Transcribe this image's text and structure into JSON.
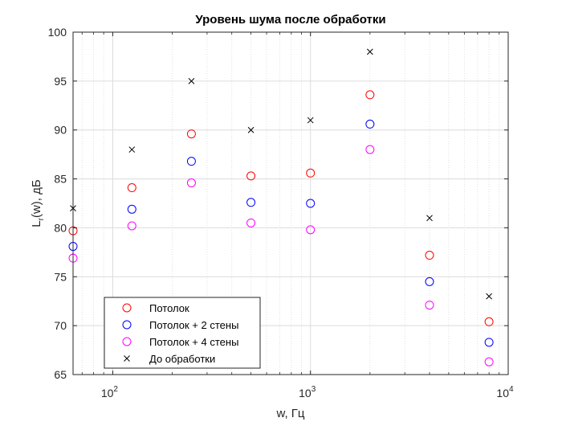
{
  "chart_data": {
    "type": "scatter",
    "title": "Уровень шума после обработки",
    "xlabel": "w, Гц",
    "ylabel": {
      "base": "L",
      "sub": "r",
      "rest": "(w), дБ"
    },
    "xscale": "log",
    "xlim": [
      63,
      10000
    ],
    "ylim": [
      65,
      100
    ],
    "grid": true,
    "legend_position": "bottom-left",
    "xticks": [
      {
        "value": 100,
        "base": "10",
        "exp": "2"
      },
      {
        "value": 1000,
        "base": "10",
        "exp": "3"
      },
      {
        "value": 10000,
        "base": "10",
        "exp": "4"
      }
    ],
    "yticks": [
      65,
      70,
      75,
      80,
      85,
      90,
      95,
      100
    ],
    "x": [
      63,
      125,
      250,
      500,
      1000,
      2000,
      4000,
      8000
    ],
    "series": [
      {
        "name": "Потолок",
        "marker": "circle",
        "color": "#ff0000",
        "values": [
          79.7,
          84.1,
          89.6,
          85.3,
          85.6,
          93.6,
          77.2,
          70.4
        ]
      },
      {
        "name": "Потолок + 2 стены",
        "marker": "circle",
        "color": "#0000ff",
        "values": [
          78.1,
          81.9,
          86.8,
          82.6,
          82.5,
          90.6,
          74.5,
          68.3
        ]
      },
      {
        "name": "Потолок + 4 стены",
        "marker": "circle",
        "color": "#ff00ff",
        "values": [
          76.9,
          80.2,
          84.6,
          80.5,
          79.8,
          88.0,
          72.1,
          66.3
        ]
      },
      {
        "name": "До обработки",
        "marker": "x",
        "color": "#000000",
        "values": [
          82,
          88,
          95,
          90,
          91,
          98,
          81,
          73
        ]
      }
    ]
  }
}
